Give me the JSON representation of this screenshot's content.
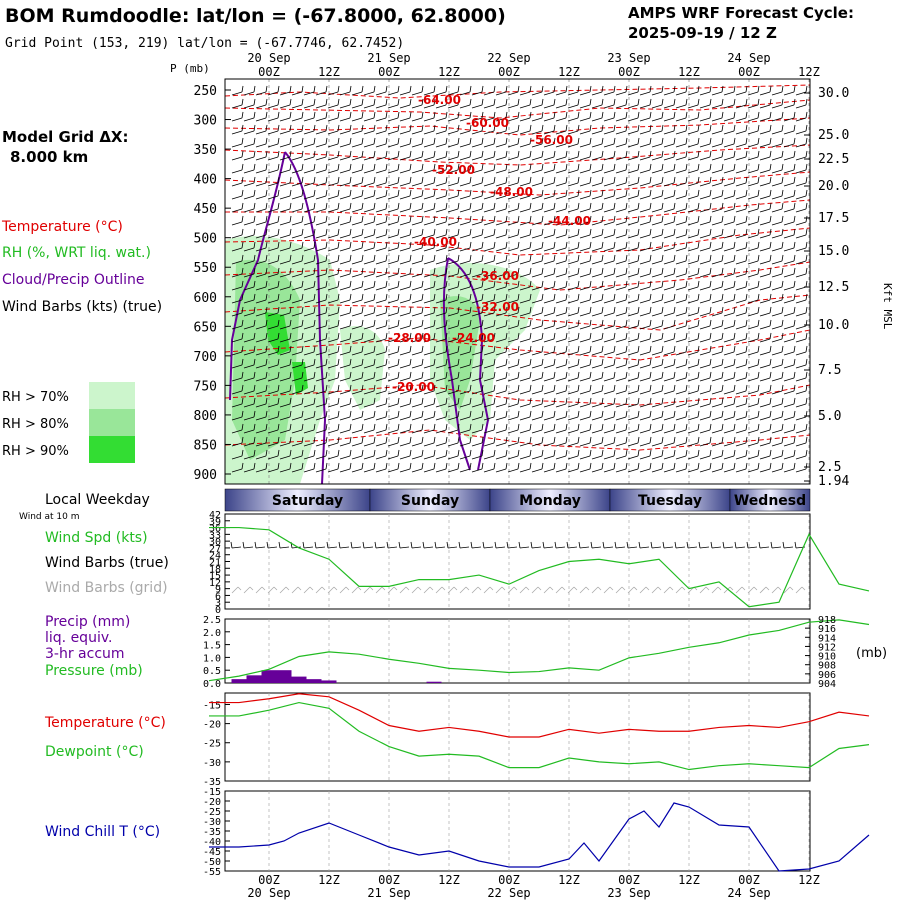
{
  "header": {
    "station_title": "BOM Rumdoodle:  lat/lon = (-67.8000, 62.8000)",
    "grid_point": "Grid Point (153, 219) lat/lon = (-67.7746, 62.7452)",
    "forecast_title": "AMPS WRF Forecast Cycle:",
    "forecast_cycle": "2025-09-19 / 12  Z"
  },
  "colors": {
    "temperature": "#e00000",
    "rh": "#22bb22",
    "cloud": "#660099",
    "wind": "#000000",
    "grid_wind": "#aaaaaa",
    "precip": "#660099",
    "pressure": "#22bb22",
    "windchill": "#0000aa",
    "weekday_band": "#404a90",
    "rh70": "#ccf5cc",
    "rh80": "#99e699",
    "rh90": "#33dd33"
  },
  "time_axis": {
    "hour_labels": [
      "00Z",
      "12Z",
      "00Z",
      "12Z",
      "00Z",
      "12Z",
      "00Z",
      "12Z",
      "00Z",
      "12Z"
    ],
    "date_labels": [
      "20 Sep",
      "21 Sep",
      "22 Sep",
      "23 Sep",
      "24 Sep"
    ]
  },
  "upper_panel": {
    "pressure_axis_title": "P (mb)",
    "pressure_ticks": [
      "250",
      "300",
      "350",
      "400",
      "450",
      "500",
      "550",
      "600",
      "650",
      "700",
      "750",
      "800",
      "850",
      "900"
    ],
    "height_ticks": [
      "30.0",
      "25.0",
      "22.5",
      "20.0",
      "17.5",
      "15.0",
      "12.5",
      "10.0",
      "7.5",
      "5.0",
      "2.5",
      "1.94"
    ],
    "height_axis_title": "Kft MSL",
    "model_grid_label": "Model Grid ΔX:",
    "model_grid_value": "8.000 km",
    "legend": {
      "temperature": "Temperature (°C)",
      "rh": "RH (%, WRT liq. wat.)",
      "cloud": "Cloud/Precip Outline",
      "wind": "Wind Barbs (kts) (true)"
    },
    "rh_legend": [
      "RH > 70%",
      "RH > 80%",
      "RH > 90%"
    ],
    "isotherm_labels": [
      "-64.00",
      "-60.00",
      "-56.00",
      "-52.00",
      "-48.00",
      "-44.00",
      "-40.00",
      "-36.00",
      "-32.00",
      "-28.00",
      "-24.00",
      "-20.00"
    ]
  },
  "weekday_bar": {
    "title": "Local Weekday",
    "days": [
      "Saturday",
      "Sunday",
      "Monday",
      "Tuesday",
      "Wednesd"
    ]
  },
  "wind_panel": {
    "subtitle": "Wind at 10 m",
    "label_speed": "Wind Spd (kts)",
    "label_barbs_true": "Wind Barbs (true)",
    "label_barbs_grid": "Wind Barbs (grid)",
    "y_ticks": [
      "42",
      "39",
      "36",
      "33",
      "30",
      "27",
      "24",
      "21",
      "18",
      "15",
      "12",
      "9",
      "6",
      "3",
      "0"
    ]
  },
  "precip_panel": {
    "label_precip": "Precip (mm)",
    "label_liq": "liq. equiv.",
    "label_accum": "3-hr accum",
    "label_pressure": "Pressure (mb)",
    "left_ticks": [
      "2.5",
      "2.0",
      "1.5",
      "1.0",
      "0.5",
      "0.0"
    ],
    "right_ticks": [
      "918",
      "916",
      "914",
      "912",
      "910",
      "908",
      "906",
      "904"
    ],
    "right_unit": "(mb)"
  },
  "temp_panel": {
    "label_temp": "Temperature (°C)",
    "label_dew": "Dewpoint (°C)",
    "y_ticks": [
      "-15",
      "-20",
      "-25",
      "-30",
      "-35"
    ]
  },
  "chill_panel": {
    "label_chill": "Wind Chill T (°C)",
    "y_ticks": [
      "-15",
      "-20",
      "-25",
      "-30",
      "-35",
      "-40",
      "-45",
      "-50",
      "-55"
    ]
  },
  "chart_data": [
    {
      "type": "line",
      "title": "",
      "xlabel": "",
      "ylabel": "Wind Spd (kts)",
      "ylim": [
        0,
        42
      ],
      "x": [
        -12,
        -6,
        0,
        6,
        12,
        18,
        24,
        30,
        36,
        42,
        48,
        54,
        60,
        66,
        72,
        78,
        84,
        90,
        96,
        102,
        108,
        114,
        120
      ],
      "series": [
        {
          "name": "Wind Spd (kts)",
          "values": [
            36,
            36,
            35,
            27,
            22,
            10,
            10,
            13,
            13,
            15,
            11,
            17,
            21,
            22,
            20,
            22,
            9,
            12,
            1,
            3,
            33,
            11,
            8
          ]
        }
      ]
    },
    {
      "type": "line",
      "title": "",
      "xlabel": "",
      "ylabel": "Pressure (mb)",
      "ylim": [
        904,
        918
      ],
      "x": [
        -12,
        -6,
        0,
        6,
        12,
        18,
        24,
        30,
        36,
        42,
        48,
        54,
        60,
        66,
        72,
        78,
        84,
        90,
        96,
        102,
        108,
        114,
        120
      ],
      "series": [
        {
          "name": "Pressure (mb)",
          "values": [
            904.5,
            905.5,
            907,
            909.8,
            910.8,
            910.3,
            909.2,
            908.3,
            907.2,
            906.8,
            906.3,
            906.5,
            907.3,
            906.8,
            909.5,
            910.5,
            911.8,
            912.8,
            914.5,
            915.5,
            917.3,
            917.8,
            916.8
          ]
        }
      ]
    },
    {
      "type": "bar",
      "title": "",
      "xlabel": "",
      "ylabel": "Precip (mm)",
      "ylim": [
        0,
        2.5
      ],
      "x": [
        -6,
        -3,
        0,
        3,
        6,
        9,
        12,
        33
      ],
      "values": [
        0.15,
        0.3,
        0.5,
        0.5,
        0.25,
        0.15,
        0.1,
        0.05
      ]
    },
    {
      "type": "line",
      "title": "",
      "xlabel": "",
      "ylabel": "Temperature (°C)",
      "ylim": [
        -35,
        -12
      ],
      "x": [
        -12,
        -6,
        0,
        6,
        12,
        18,
        24,
        30,
        36,
        42,
        48,
        54,
        60,
        66,
        72,
        78,
        84,
        90,
        96,
        102,
        108,
        114,
        120
      ],
      "series": [
        {
          "name": "Temperature (°C)",
          "values": [
            -14.5,
            -14.5,
            -13.5,
            -12.2,
            -13,
            -16.5,
            -20.5,
            -22,
            -21,
            -22,
            -23.5,
            -23.5,
            -21.5,
            -22.5,
            -21.5,
            -22,
            -22,
            -21,
            -20.5,
            -21,
            -19.5,
            -17,
            -18
          ]
        },
        {
          "name": "Dewpoint (°C)",
          "values": [
            -18,
            -18,
            -16.5,
            -14.5,
            -16,
            -22,
            -26,
            -28.5,
            -28,
            -28.5,
            -31.5,
            -31.5,
            -29,
            -30,
            -30.5,
            -30,
            -32,
            -31,
            -30.5,
            -31,
            -31.5,
            -26.5,
            -25.5
          ]
        }
      ]
    },
    {
      "type": "line",
      "title": "",
      "xlabel": "",
      "ylabel": "Wind Chill T (°C)",
      "ylim": [
        -55,
        -15
      ],
      "x": [
        -12,
        -6,
        0,
        3,
        6,
        12,
        18,
        24,
        30,
        36,
        42,
        48,
        54,
        60,
        63,
        66,
        72,
        75,
        78,
        81,
        84,
        90,
        96,
        102,
        108,
        114,
        120
      ],
      "series": [
        {
          "name": "Wind Chill T (°C)",
          "values": [
            -43,
            -43,
            -42,
            -40,
            -36,
            -31,
            -37,
            -43,
            -47,
            -45,
            -50,
            -53,
            -53,
            -49,
            -41,
            -50,
            -29,
            -25,
            -33,
            -21,
            -23,
            -32,
            -33,
            -55,
            -54,
            -50,
            -37
          ]
        }
      ]
    }
  ]
}
